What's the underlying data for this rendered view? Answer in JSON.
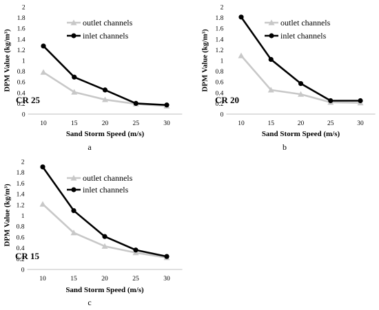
{
  "chart_data": [
    {
      "type": "line",
      "panel_letter": "a",
      "annotation": "CR 25",
      "xlabel": "Sand Storm Speed (m/s)",
      "ylabel": "DPM Value (kg/m³)",
      "categories": [
        "10",
        "15",
        "20",
        "25",
        "30"
      ],
      "ylim": [
        0,
        2
      ],
      "yticks": [
        "0",
        "0.2",
        "0.4",
        "0.6",
        "0.8",
        "1",
        "1.2",
        "1.4",
        "1.6",
        "1.8",
        "2"
      ],
      "legend": "top-right",
      "series": [
        {
          "name": "outlet channels",
          "color": "#c8c8c8",
          "marker": "triangle",
          "values": [
            0.78,
            0.41,
            0.27,
            0.19,
            0.15
          ]
        },
        {
          "name": "inlet channels",
          "color": "#000000",
          "marker": "circle",
          "values": [
            1.27,
            0.69,
            0.45,
            0.2,
            0.17
          ]
        }
      ]
    },
    {
      "type": "line",
      "panel_letter": "b",
      "annotation": "CR 20",
      "xlabel": "Sand Storm Speed (m/s)",
      "ylabel": "DPM Value (kg/m³)",
      "categories": [
        "10",
        "15",
        "20",
        "25",
        "30"
      ],
      "ylim": [
        0,
        2
      ],
      "yticks": [
        "0",
        "0.2",
        "0.4",
        "0.6",
        "0.8",
        "1",
        "1.2",
        "1.4",
        "1.6",
        "1.8",
        "2"
      ],
      "legend": "top-right",
      "series": [
        {
          "name": "outlet channels",
          "color": "#c8c8c8",
          "marker": "triangle",
          "values": [
            1.09,
            0.45,
            0.37,
            0.22,
            0.21
          ]
        },
        {
          "name": "inlet channels",
          "color": "#000000",
          "marker": "circle",
          "values": [
            1.81,
            1.02,
            0.57,
            0.25,
            0.25
          ]
        }
      ]
    },
    {
      "type": "line",
      "panel_letter": "c",
      "annotation": "CR 15",
      "xlabel": "Sand Storm Speed (m/s)",
      "ylabel": "DPM Value (kg/m³)",
      "categories": [
        "10",
        "15",
        "20",
        "25",
        "30"
      ],
      "ylim": [
        0,
        2
      ],
      "yticks": [
        "0",
        "0.2",
        "0.4",
        "0.6",
        "0.8",
        "1",
        "1.2",
        "1.4",
        "1.6",
        "1.8",
        "2"
      ],
      "legend": "top-right",
      "series": [
        {
          "name": "outlet channels",
          "color": "#c8c8c8",
          "marker": "triangle",
          "values": [
            1.21,
            0.68,
            0.43,
            0.31,
            0.22
          ]
        },
        {
          "name": "inlet channels",
          "color": "#000000",
          "marker": "circle",
          "values": [
            1.9,
            1.09,
            0.61,
            0.36,
            0.24
          ]
        }
      ]
    }
  ]
}
